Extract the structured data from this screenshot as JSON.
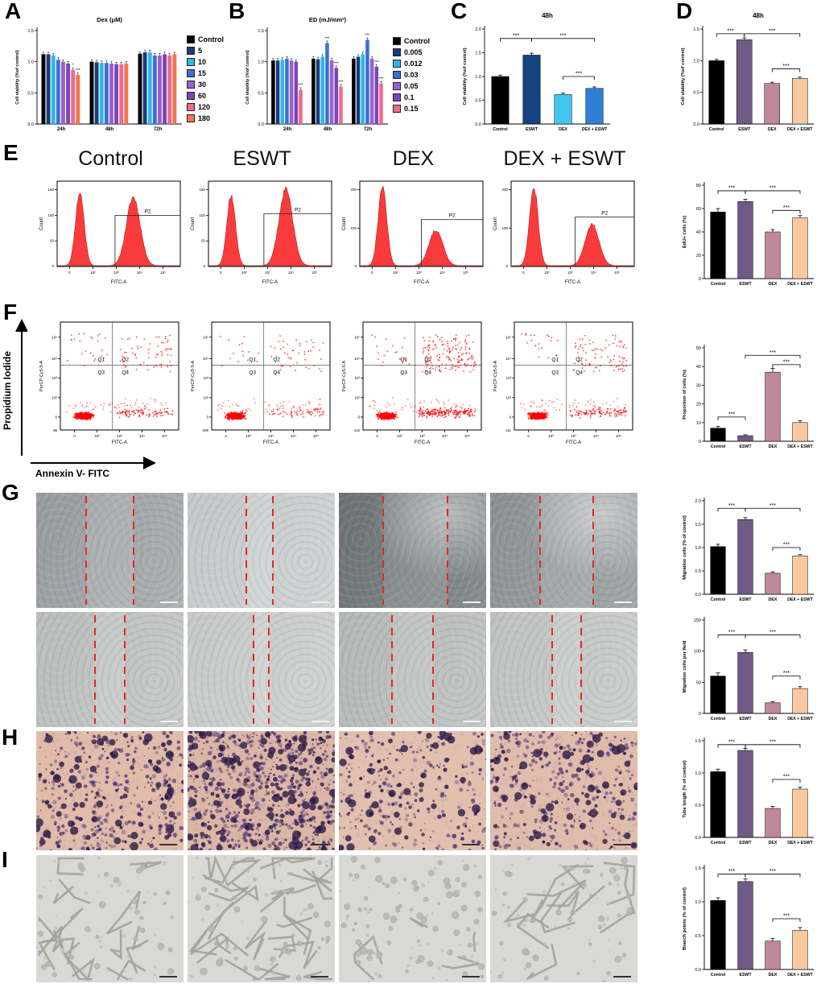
{
  "figure": {
    "panel_labels": {
      "A": "A",
      "B": "B",
      "C": "C",
      "D": "D",
      "E": "E",
      "F": "F",
      "G": "G",
      "H": "H",
      "I": "I"
    },
    "group_titles": [
      "Control",
      "ESWT",
      "DEX",
      "DEX + ESWT"
    ],
    "f_axis": {
      "y": "Propidium Iodide",
      "x": "Annexin V- FITC"
    }
  },
  "chart_data": {
    "A": {
      "type": "bar",
      "title": "Dex (μM)",
      "ylabel": "Cell viability (%of control)",
      "ylim": [
        0,
        1.5
      ],
      "yticks": [
        0,
        0.5,
        1,
        1.5
      ],
      "categories": [
        "24h",
        "48h",
        "72h"
      ],
      "series": [
        {
          "name": "Control",
          "color": "#000000",
          "values": [
            1.12,
            1.0,
            1.13
          ]
        },
        {
          "name": "5",
          "color": "#173d7a",
          "values": [
            1.12,
            0.99,
            1.15
          ]
        },
        {
          "name": "10",
          "color": "#2eb6ea",
          "values": [
            1.1,
            0.98,
            1.15
          ]
        },
        {
          "name": "15",
          "color": "#3a6fd8",
          "values": [
            1.03,
            0.98,
            1.1
          ]
        },
        {
          "name": "30",
          "color": "#9a5fce",
          "values": [
            1.0,
            0.97,
            1.1
          ]
        },
        {
          "name": "60",
          "color": "#7b46b8",
          "values": [
            0.97,
            0.96,
            1.12
          ]
        },
        {
          "name": "120",
          "color": "#f2678f",
          "values": [
            0.87,
            0.96,
            1.1
          ]
        },
        {
          "name": "180",
          "color": "#f0764f",
          "values": [
            0.79,
            0.97,
            1.12
          ]
        }
      ],
      "annotations": [
        {
          "cat": 0,
          "series": 6,
          "text": "*"
        },
        {
          "cat": 0,
          "series": 7,
          "text": "***"
        }
      ]
    },
    "B": {
      "type": "bar",
      "title": "ED (mJ/mm²)",
      "ylabel": "Cell viability (%of control)",
      "ylim": [
        0,
        1.5
      ],
      "yticks": [
        0,
        0.5,
        1,
        1.5
      ],
      "categories": [
        "24h",
        "48h",
        "72h"
      ],
      "series": [
        {
          "name": "Control",
          "color": "#000000",
          "values": [
            1.02,
            1.05,
            1.05
          ]
        },
        {
          "name": "0.005",
          "color": "#173d7a",
          "values": [
            1.02,
            1.04,
            1.08
          ]
        },
        {
          "name": "0.012",
          "color": "#2eb6ea",
          "values": [
            1.03,
            1.08,
            1.12
          ]
        },
        {
          "name": "0.03",
          "color": "#3a6fd8",
          "values": [
            1.05,
            1.3,
            1.35
          ]
        },
        {
          "name": "0.05",
          "color": "#9a5fce",
          "values": [
            1.02,
            1.02,
            1.05
          ]
        },
        {
          "name": "0.1",
          "color": "#7b46b8",
          "values": [
            1.0,
            0.9,
            0.92
          ]
        },
        {
          "name": "0.15",
          "color": "#f2678f",
          "values": [
            0.55,
            0.6,
            0.65
          ]
        }
      ],
      "annotations": [
        {
          "cat": 0,
          "series": 6,
          "text": "***"
        },
        {
          "cat": 1,
          "series": 3,
          "text": "***"
        },
        {
          "cat": 1,
          "series": 5,
          "text": "***"
        },
        {
          "cat": 1,
          "series": 6,
          "text": "***"
        },
        {
          "cat": 2,
          "series": 3,
          "text": "***"
        },
        {
          "cat": 2,
          "series": 5,
          "text": "***"
        },
        {
          "cat": 2,
          "series": 6,
          "text": "***"
        }
      ]
    },
    "C": {
      "type": "bar",
      "title": "48h",
      "ylabel": "Cell viability (%of control)",
      "ylim": [
        0,
        2
      ],
      "yticks": [
        0,
        0.5,
        1,
        1.5,
        2
      ],
      "categories": [
        "Control",
        "ESWT",
        "DEX",
        "DEX + ESWT"
      ],
      "values": [
        1.0,
        1.45,
        0.62,
        0.75
      ],
      "errors": [
        0.03,
        0.04,
        0.03,
        0.03
      ],
      "colors": [
        "#000000",
        "#16427e",
        "#43c5ee",
        "#2f7fd6"
      ],
      "sig": [
        {
          "a": 0,
          "b": 1,
          "text": "***",
          "f": 0.1
        },
        {
          "a": 1,
          "b": 3,
          "text": "***",
          "f": 0.1
        },
        {
          "a": 2,
          "b": 3,
          "text": "***",
          "f": 0.5
        }
      ]
    },
    "D": {
      "type": "bar",
      "title": "48h",
      "ylabel": "Cell viability (%of control)",
      "ylim": [
        0,
        1.5
      ],
      "yticks": [
        0,
        0.5,
        1,
        1.5
      ],
      "categories": [
        "Control",
        "ESWT",
        "DEX",
        "DEX + ESWT"
      ],
      "values": [
        1.0,
        1.33,
        0.64,
        0.72
      ],
      "errors": [
        0.02,
        0.03,
        0.02,
        0.02
      ],
      "colors": [
        "#000000",
        "#6f5b85",
        "#bf8799",
        "#f7c9a0"
      ],
      "sig": [
        {
          "a": 0,
          "b": 1,
          "text": "***",
          "f": 0.05
        },
        {
          "a": 1,
          "b": 3,
          "text": "***",
          "f": 0.05
        },
        {
          "a": 2,
          "b": 3,
          "text": "***",
          "f": 0.42
        }
      ]
    },
    "E": {
      "type": "bar",
      "title": "",
      "ylabel": "EdU+ cells (%)",
      "ylim": [
        0,
        80
      ],
      "yticks": [
        0,
        20,
        40,
        60,
        80
      ],
      "categories": [
        "Control",
        "ESWT",
        "DEX",
        "DEX + ESWT"
      ],
      "values": [
        57,
        66,
        40,
        52
      ],
      "errors": [
        3,
        2,
        2,
        2
      ],
      "colors": [
        "#000000",
        "#6f5b85",
        "#bf8799",
        "#f7c9a0"
      ],
      "sig": [
        {
          "a": 0,
          "b": 1,
          "text": "***",
          "f": 0.06
        },
        {
          "a": 1,
          "b": 3,
          "text": "***",
          "f": 0.06
        },
        {
          "a": 2,
          "b": 3,
          "text": "***",
          "f": 0.27
        }
      ]
    },
    "F": {
      "type": "bar",
      "title": "",
      "ylabel": "Proportion of cells (%)",
      "ylim": [
        0,
        50
      ],
      "yticks": [
        0,
        10,
        20,
        30,
        40,
        50
      ],
      "categories": [
        "Control",
        "ESWT",
        "DEX",
        "DEX + ESWT"
      ],
      "values": [
        7,
        3,
        37,
        10
      ],
      "errors": [
        1,
        0.5,
        2,
        1
      ],
      "colors": [
        "#000000",
        "#6f5b85",
        "#bf8799",
        "#f7c9a0"
      ],
      "sig": [
        {
          "a": 0,
          "b": 1,
          "text": "***",
          "f": 0.74
        },
        {
          "a": 1,
          "b": 3,
          "text": "***",
          "f": 0.08
        },
        {
          "a": 2,
          "b": 3,
          "text": "***",
          "f": 0.18
        }
      ]
    },
    "G1": {
      "type": "bar",
      "title": "",
      "ylabel": "Migration cells (% of control)",
      "ylim": [
        0,
        2
      ],
      "yticks": [
        0,
        0.5,
        1,
        1.5,
        2
      ],
      "categories": [
        "Control",
        "ESWT",
        "DEX",
        "DEX + ESWT"
      ],
      "values": [
        1.02,
        1.6,
        0.45,
        0.82
      ],
      "errors": [
        0.05,
        0.04,
        0.03,
        0.03
      ],
      "colors": [
        "#000000",
        "#6f5b85",
        "#bf8799",
        "#f7c9a0"
      ],
      "sig": [
        {
          "a": 0,
          "b": 1,
          "text": "***",
          "f": 0.08
        },
        {
          "a": 1,
          "b": 3,
          "text": "***",
          "f": 0.08
        },
        {
          "a": 2,
          "b": 3,
          "text": "***",
          "f": 0.5
        }
      ]
    },
    "G2": {
      "type": "bar",
      "title": "",
      "ylabel": "Migration cells per field",
      "ylim": [
        0,
        150
      ],
      "yticks": [
        0,
        50,
        100,
        150
      ],
      "categories": [
        "Control",
        "ESWT",
        "DEX",
        "DEX + ESWT"
      ],
      "values": [
        60,
        98,
        17,
        40
      ],
      "errors": [
        5,
        4,
        2,
        3
      ],
      "colors": [
        "#000000",
        "#6f5b85",
        "#bf8799",
        "#f7c9a0"
      ],
      "sig": [
        {
          "a": 0,
          "b": 1,
          "text": "***",
          "f": 0.16
        },
        {
          "a": 1,
          "b": 3,
          "text": "***",
          "f": 0.16
        },
        {
          "a": 2,
          "b": 3,
          "text": "***",
          "f": 0.6
        }
      ]
    },
    "H": {
      "type": "bar",
      "title": "",
      "ylabel": "Tube length (% of control)",
      "ylim": [
        0,
        1.5
      ],
      "yticks": [
        0,
        0.5,
        1,
        1.5
      ],
      "categories": [
        "Control",
        "ESWT",
        "DEX",
        "DEX + ESWT"
      ],
      "values": [
        1.02,
        1.35,
        0.45,
        0.75
      ],
      "errors": [
        0.04,
        0.03,
        0.03,
        0.03
      ],
      "colors": [
        "#000000",
        "#6f5b85",
        "#bf8799",
        "#f7c9a0"
      ],
      "sig": [
        {
          "a": 0,
          "b": 1,
          "text": "***",
          "f": 0.04
        },
        {
          "a": 1,
          "b": 3,
          "text": "***",
          "f": 0.04
        },
        {
          "a": 2,
          "b": 3,
          "text": "***",
          "f": 0.4
        }
      ]
    },
    "I": {
      "type": "bar",
      "title": "",
      "ylabel": "Branch points (% of control)",
      "ylim": [
        0,
        1.5
      ],
      "yticks": [
        0,
        0.5,
        1,
        1.5
      ],
      "categories": [
        "Control",
        "ESWT",
        "DEX",
        "DEX + ESWT"
      ],
      "values": [
        1.02,
        1.3,
        0.42,
        0.58
      ],
      "errors": [
        0.04,
        0.04,
        0.04,
        0.04
      ],
      "colors": [
        "#000000",
        "#6f5b85",
        "#bf8799",
        "#f7c9a0"
      ],
      "sig": [
        {
          "a": 0,
          "b": 1,
          "text": "***",
          "f": 0.06
        },
        {
          "a": 1,
          "b": 3,
          "text": "***",
          "f": 0.06
        },
        {
          "a": 2,
          "b": 3,
          "text": "***",
          "f": 0.5
        }
      ]
    }
  },
  "flow": {
    "histograms": {
      "xlabel": "FITC-A",
      "ylabel": "Count",
      "gate_label": "P2",
      "xticks": [
        "0",
        "10²",
        "10³",
        "10⁴",
        "10⁵"
      ],
      "panels": [
        {
          "name": "Control",
          "yticks": [
            "50",
            "100",
            "150"
          ],
          "peak1": 0.92,
          "peak2": 0.86,
          "peak2_x": 0.62,
          "gate_x": 0.47,
          "gate_y": 0.4
        },
        {
          "name": "ESWT",
          "yticks": [
            "50",
            "100",
            "150"
          ],
          "peak1": 0.88,
          "peak2": 0.96,
          "peak2_x": 0.63,
          "gate_x": 0.45,
          "gate_y": 0.38
        },
        {
          "name": "DEX",
          "yticks": [
            "100",
            "200"
          ],
          "peak1": 1,
          "peak2": 0.45,
          "peak2_x": 0.62,
          "gate_x": 0.5,
          "gate_y": 0.45
        },
        {
          "name": "DEX + ESWT",
          "yticks": [
            "100",
            "200"
          ],
          "peak1": 1,
          "peak2": 0.52,
          "peak2_x": 0.66,
          "gate_x": 0.52,
          "gate_y": 0.42
        }
      ]
    },
    "scatter": {
      "xlabel": "FITC-A",
      "ylabel": "PerCP-Cy5-5-A",
      "quadrant_labels": [
        "Q1",
        "Q2",
        "Q3",
        "Q4"
      ],
      "xticks": [
        "0",
        "10²",
        "10³",
        "10⁴",
        "10⁵"
      ],
      "yticks": [
        "0",
        "10²",
        "10³",
        "10⁴",
        "10⁵"
      ],
      "panels": [
        {
          "name": "Control",
          "y_min_label": "-86",
          "q1": 25,
          "q2": 70,
          "q3_main": 650,
          "q4": 90
        },
        {
          "name": "ESWT",
          "y_min_label": "-399",
          "q1": 15,
          "q2": 45,
          "q3_main": 650,
          "q4": 60
        },
        {
          "name": "DEX",
          "y_min_label": "-142",
          "q1": 20,
          "q2": 160,
          "q3_main": 550,
          "q4": 200
        },
        {
          "name": "DEX + ESWT",
          "y_min_label": "-111",
          "q1": 20,
          "q2": 90,
          "q3_main": 600,
          "q4": 110
        }
      ]
    }
  },
  "images": {
    "wound_row1": [
      {
        "base1": "#969c9e",
        "base2": "#aeb2b3",
        "lines": [
          0.34,
          0.66
        ],
        "bright": false
      },
      {
        "base1": "#c4c8c9",
        "base2": "#d2d5d5",
        "lines": [
          0.4,
          0.58
        ],
        "bright": false
      },
      {
        "base1": "#6b7274",
        "base2": "#888f91",
        "lines": [
          0.3,
          0.74
        ],
        "bright": true
      },
      {
        "base1": "#8b9193",
        "base2": "#a2a7a8",
        "lines": [
          0.34,
          0.7
        ],
        "bright": true
      }
    ],
    "wound_row2": [
      {
        "base1": "#b9bdbc",
        "base2": "#c8cbca",
        "lines": [
          0.4,
          0.6
        ],
        "bright": false
      },
      {
        "base1": "#c6c9c8",
        "base2": "#d2d4d3",
        "lines": [
          0.45,
          0.55
        ],
        "bright": false
      },
      {
        "base1": "#b3b7b6",
        "base2": "#c4c7c6",
        "lines": [
          0.36,
          0.64
        ],
        "bright": false
      },
      {
        "base1": "#bec1c0",
        "base2": "#cdd0cf",
        "lines": [
          0.42,
          0.62
        ],
        "bright": false
      }
    ],
    "transwell": [
      {
        "bg": "#e0bca9",
        "count": 430
      },
      {
        "bg": "#dcb7a4",
        "count": 780
      },
      {
        "bg": "#e2c0ae",
        "count": 300
      },
      {
        "bg": "#e0bcaa",
        "count": 380
      }
    ],
    "tube": [
      {
        "lines": 16,
        "blobs": 30
      },
      {
        "lines": 26,
        "blobs": 35
      },
      {
        "lines": 4,
        "blobs": 75
      },
      {
        "lines": 10,
        "blobs": 45
      }
    ]
  }
}
